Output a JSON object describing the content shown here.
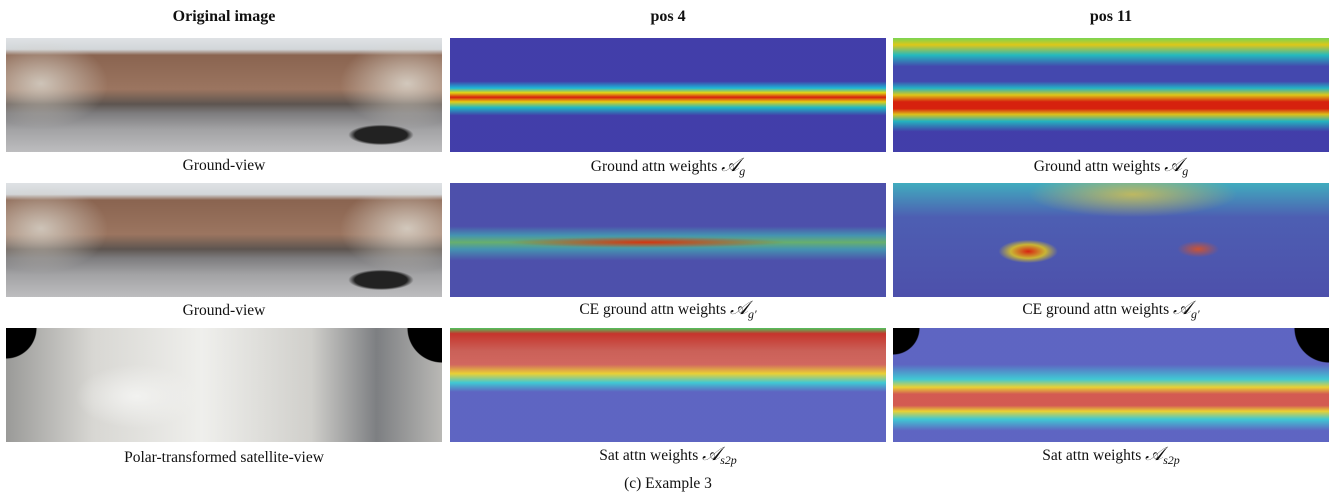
{
  "header": {
    "columns": [
      "Original image",
      "pos 4",
      "pos 11"
    ]
  },
  "rows": [
    {
      "captions": [
        {
          "text": "Ground-view"
        },
        {
          "text": "Ground attn weights",
          "symbol": "𝒜",
          "subscript": "g"
        },
        {
          "text": "Ground attn weights",
          "symbol": "𝒜",
          "subscript": "g"
        }
      ]
    },
    {
      "captions": [
        {
          "text": "Ground-view"
        },
        {
          "text": "CE ground attn weights",
          "symbol": "𝒜",
          "subscript": "g′"
        },
        {
          "text": "CE ground attn weights",
          "symbol": "𝒜",
          "subscript": "g′"
        }
      ]
    },
    {
      "captions": [
        {
          "text": "Polar-transformed satellite-view"
        },
        {
          "text": "Sat attn weights",
          "symbol": "𝒜",
          "subscript": "s2p"
        },
        {
          "text": "Sat attn weights",
          "symbol": "𝒜",
          "subscript": "s2p"
        }
      ]
    }
  ],
  "figure_caption": "(c) Example 3"
}
